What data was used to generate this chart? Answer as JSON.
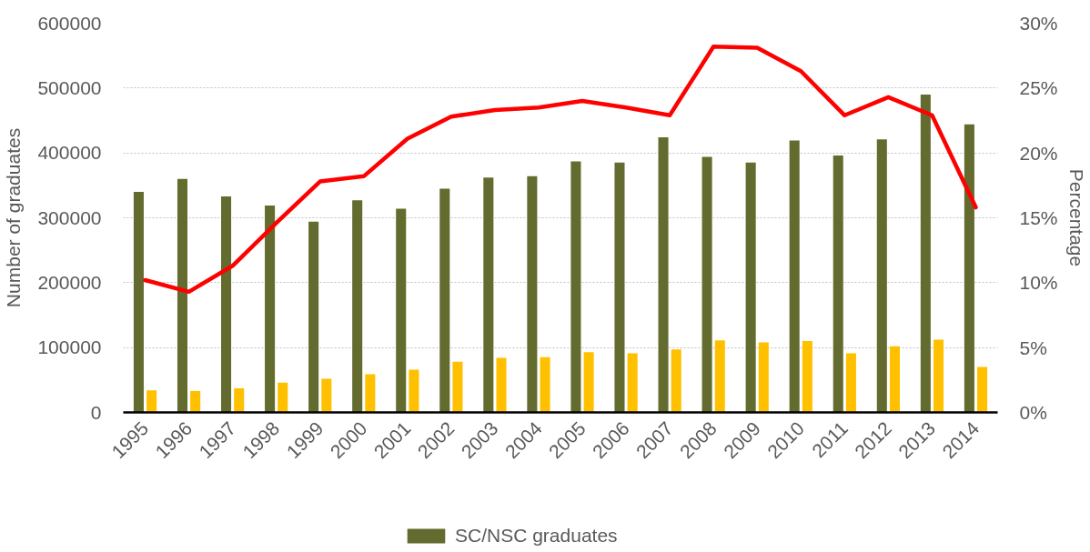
{
  "chart_data": {
    "type": "bar",
    "ylabel": "Number of graduates",
    "y2label": "Percentage",
    "categories": [
      "1995",
      "1996",
      "1997",
      "1998",
      "1999",
      "2000",
      "2001",
      "2002",
      "2003",
      "2004",
      "2005",
      "2006",
      "2007",
      "2008",
      "2009",
      "2010",
      "2011",
      "2012",
      "2013",
      "2014"
    ],
    "series": [
      {
        "name": "SC/NSC graduates",
        "color": "#636b2f",
        "values": [
          340000,
          360000,
          333000,
          319000,
          294000,
          327000,
          314000,
          345000,
          362000,
          364000,
          387000,
          385000,
          424000,
          394000,
          385000,
          419000,
          396000,
          421000,
          490000,
          444000
        ]
      },
      {
        "color": "#ffc000",
        "values": [
          34000,
          33000,
          37000,
          46000,
          52000,
          59000,
          66000,
          78000,
          84000,
          85000,
          93000,
          91000,
          97000,
          111000,
          108000,
          110000,
          91000,
          102000,
          112000,
          70000
        ]
      },
      {
        "type": "line",
        "axis": "y2",
        "color": "#ff0000",
        "values": [
          10.2,
          9.3,
          11.3,
          14.6,
          17.8,
          18.2,
          21.1,
          22.8,
          23.3,
          23.5,
          24.0,
          23.5,
          22.9,
          28.2,
          28.1,
          26.3,
          22.9,
          24.3,
          22.9,
          15.8
        ]
      }
    ],
    "ylim": [
      0,
      600000
    ],
    "yticks": [
      0,
      100000,
      200000,
      300000,
      400000,
      500000,
      600000
    ],
    "y2lim": [
      0,
      30
    ],
    "y2ticks": [
      {
        "value": 0,
        "label": "0%"
      },
      {
        "value": 5,
        "label": "5%"
      },
      {
        "value": 10,
        "label": "10%"
      },
      {
        "value": 15,
        "label": "15%"
      },
      {
        "value": 20,
        "label": "20%"
      },
      {
        "value": 25,
        "label": "25%"
      },
      {
        "value": 30,
        "label": "30%"
      }
    ],
    "grid": "y",
    "legend": "bottom"
  }
}
